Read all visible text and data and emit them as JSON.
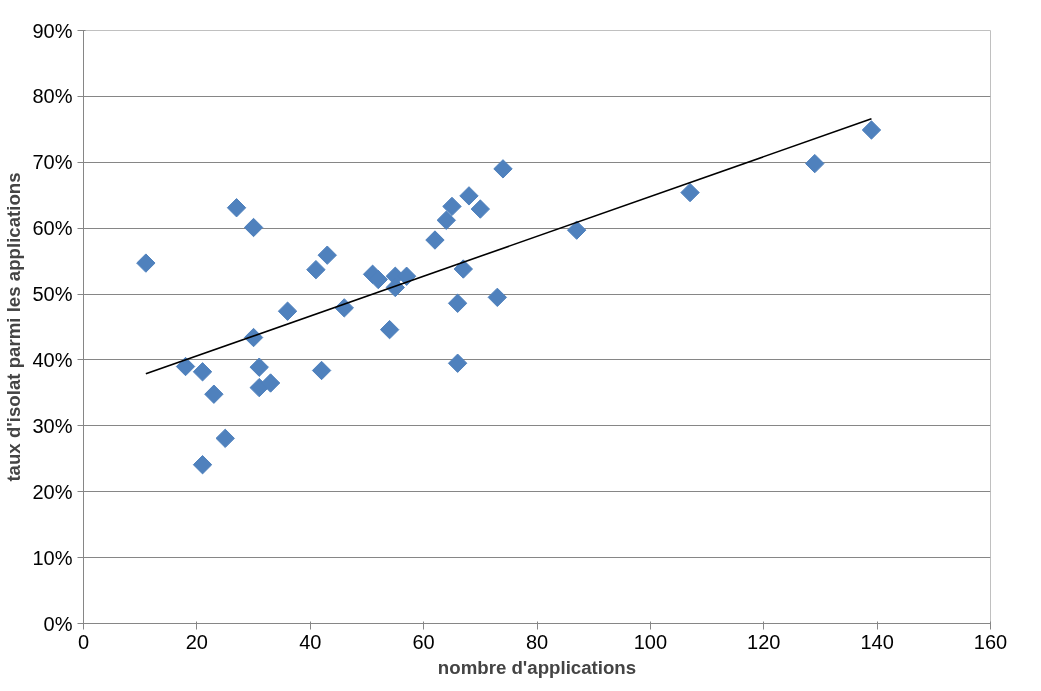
{
  "chart_data": {
    "type": "scatter",
    "xlabel": "nombre d'applications",
    "ylabel": "taux d'isolat parmi les applications",
    "xlim": [
      0,
      160
    ],
    "xticks": [
      0,
      20,
      40,
      60,
      80,
      100,
      120,
      140,
      160
    ],
    "ylim": [
      0,
      90
    ],
    "yticks": [
      {
        "value": 0,
        "label": "0%"
      },
      {
        "value": 10,
        "label": "10%"
      },
      {
        "value": 20,
        "label": "20%"
      },
      {
        "value": 30,
        "label": "30%"
      },
      {
        "value": 40,
        "label": "40%"
      },
      {
        "value": 50,
        "label": "50%"
      },
      {
        "value": 60,
        "label": "60%"
      },
      {
        "value": 70,
        "label": "70%"
      },
      {
        "value": 80,
        "label": "80%"
      },
      {
        "value": 90,
        "label": "90%"
      }
    ],
    "grid": "y",
    "series": [
      {
        "marker": "diamond",
        "color": "#4f81bd",
        "x": [
          11,
          18,
          21,
          23,
          21,
          25,
          27,
          30,
          30,
          31,
          31,
          33,
          36,
          41,
          43,
          42,
          46,
          51,
          52,
          54,
          55,
          55,
          57,
          62,
          64,
          65,
          66,
          66,
          67,
          68,
          70,
          73,
          74,
          87,
          107,
          129,
          139
        ],
        "values": [
          54.7,
          39.0,
          38.2,
          34.8,
          24.1,
          28.1,
          63.1,
          60.1,
          43.4,
          38.9,
          35.8,
          36.5,
          47.4,
          53.7,
          55.9,
          38.4,
          47.9,
          53.0,
          52.2,
          44.6,
          52.7,
          51.0,
          52.7,
          58.2,
          61.2,
          63.3,
          48.6,
          39.5,
          53.8,
          64.9,
          62.9,
          49.5,
          69.0,
          59.7,
          65.4,
          69.8,
          74.9
        ]
      },
      {
        "type": "line",
        "marker": "none",
        "color": "#000000",
        "x": [
          11,
          139
        ],
        "values": [
          37.9,
          76.6
        ]
      }
    ]
  }
}
